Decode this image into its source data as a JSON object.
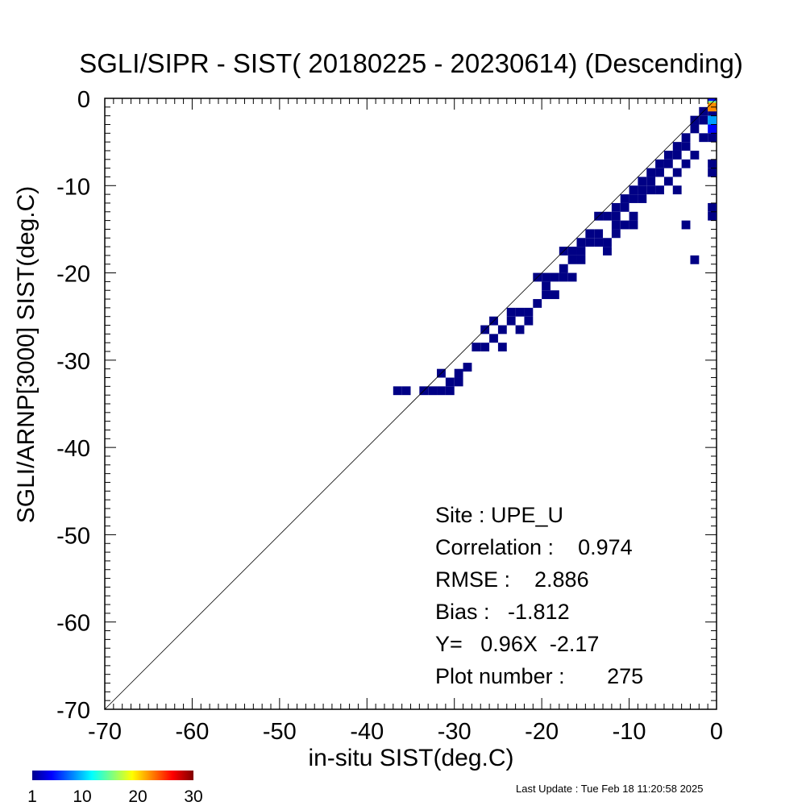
{
  "chart_data": {
    "type": "heatmap",
    "title": "SGLI/SIPR - SIST( 20180225 - 20230614) (Descending)",
    "xlabel": "in-situ SIST(deg.C)",
    "ylabel": "SGLI/ARNP[3000]     SIST(deg.C)",
    "xlim": [
      -70,
      0
    ],
    "ylim": [
      -70,
      0
    ],
    "x_ticks": [
      "-70",
      "-60",
      "-50",
      "-40",
      "-30",
      "-20",
      "-10",
      "0"
    ],
    "y_ticks": [
      "0",
      "-10",
      "-20",
      "-30",
      "-40",
      "-50",
      "-60",
      "-70"
    ],
    "reference_line": "1:1",
    "grid": false,
    "bin_size": 1,
    "stats": [
      "Site : UPE_U",
      "Correlation :    0.974",
      "RMSE :    2.886",
      "Bias :   -1.812",
      "Y=   0.96X  -2.17",
      "Plot number :       275"
    ],
    "colorbar": {
      "min": 1,
      "max": 30,
      "labels": [
        "1",
        "10",
        "20",
        "30"
      ],
      "colormap": "jet"
    },
    "cells": [
      [
        -36.5,
        -33.5,
        1
      ],
      [
        -35.5,
        -33.5,
        1
      ],
      [
        -33.5,
        -33.5,
        1
      ],
      [
        -32.5,
        -33.5,
        1
      ],
      [
        -31.5,
        -33.5,
        1
      ],
      [
        -30.5,
        -33.5,
        1
      ],
      [
        -31.5,
        -31.5,
        1
      ],
      [
        -30.5,
        -32.5,
        1
      ],
      [
        -29.5,
        -32.5,
        1
      ],
      [
        -29.5,
        -31.5,
        1
      ],
      [
        -28.5,
        -30.8,
        1
      ],
      [
        -27.5,
        -28.5,
        1
      ],
      [
        -26.5,
        -28.5,
        1
      ],
      [
        -26.5,
        -26.5,
        1
      ],
      [
        -25.5,
        -25.5,
        1
      ],
      [
        -25.5,
        -27.5,
        1
      ],
      [
        -24.5,
        -26.5,
        1
      ],
      [
        -24.5,
        -28.5,
        1
      ],
      [
        -23.5,
        -25.5,
        1
      ],
      [
        -23.5,
        -24.5,
        1
      ],
      [
        -22.5,
        -24.5,
        1
      ],
      [
        -22.5,
        -26.5,
        1
      ],
      [
        -21.5,
        -24.5,
        1
      ],
      [
        -21.5,
        -25.5,
        1
      ],
      [
        -20.5,
        -23.5,
        1
      ],
      [
        -19.5,
        -22.5,
        1
      ],
      [
        -19.5,
        -21.5,
        1
      ],
      [
        -18.5,
        -20.5,
        1
      ],
      [
        -18.5,
        -22.5,
        1
      ],
      [
        -17.5,
        -20.5,
        1
      ],
      [
        -17.5,
        -19.5,
        1
      ],
      [
        -16.5,
        -20.5,
        1
      ],
      [
        -16.5,
        -18.5,
        1
      ],
      [
        -15.5,
        -17.5,
        1
      ],
      [
        -15.5,
        -16.5,
        1
      ],
      [
        -14.5,
        -16.5,
        1
      ],
      [
        -14.5,
        -15.5,
        1
      ],
      [
        -13.5,
        -15.5,
        1
      ],
      [
        -13.5,
        -16.5,
        1
      ],
      [
        -12.5,
        -16.5,
        1
      ],
      [
        -12.5,
        -17.5,
        1
      ],
      [
        -12.5,
        -13.5,
        1
      ],
      [
        -11.5,
        -14.5,
        1
      ],
      [
        -11.5,
        -13.5,
        1
      ],
      [
        -11.5,
        -12.5,
        1
      ],
      [
        -10.5,
        -12.5,
        1
      ],
      [
        -10.5,
        -11.5,
        1
      ],
      [
        -10.5,
        -14.5,
        1
      ],
      [
        -9.5,
        -11.5,
        1
      ],
      [
        -9.5,
        -10.5,
        1
      ],
      [
        -8.5,
        -10.5,
        1
      ],
      [
        -8.5,
        -9.5,
        1
      ],
      [
        -7.5,
        -9.5,
        1
      ],
      [
        -7.5,
        -8.5,
        1
      ],
      [
        -6.5,
        -8.5,
        1
      ],
      [
        -6.5,
        -7.5,
        1
      ],
      [
        -5.5,
        -7.5,
        1
      ],
      [
        -5.5,
        -6.5,
        1
      ],
      [
        -4.5,
        -6.5,
        1
      ],
      [
        -4.5,
        -5.5,
        1
      ],
      [
        -3.5,
        -5.5,
        1
      ],
      [
        -3.5,
        -4.5,
        1
      ],
      [
        -2.5,
        -3.5,
        1
      ],
      [
        -2.5,
        -2.5,
        1
      ],
      [
        -1.5,
        -2.5,
        1
      ],
      [
        -1.5,
        -1.5,
        1
      ],
      [
        -0.5,
        -1.5,
        1
      ],
      [
        -0.5,
        -0.5,
        2
      ],
      [
        -20.5,
        -20.5,
        1
      ],
      [
        -19.5,
        -20.5,
        1
      ],
      [
        -17.5,
        -17.5,
        1
      ],
      [
        -16.5,
        -17.5,
        1
      ],
      [
        -15.5,
        -18.5,
        1
      ],
      [
        -13.5,
        -13.5,
        1
      ],
      [
        -11.5,
        -15.5,
        1
      ],
      [
        -9.5,
        -13.5,
        1
      ],
      [
        -9.5,
        -14.5,
        1
      ],
      [
        -8.5,
        -11.5,
        1
      ],
      [
        -7.5,
        -10.5,
        1
      ],
      [
        -6.5,
        -10.5,
        1
      ],
      [
        -5.5,
        -9.5,
        1
      ],
      [
        -4.5,
        -8.5,
        1
      ],
      [
        -4.5,
        -10.5,
        1
      ],
      [
        -3.5,
        -7.5,
        1
      ],
      [
        -2.5,
        -6.5,
        1
      ],
      [
        -1.5,
        -4.5,
        1
      ],
      [
        -0.5,
        -2.5,
        7
      ],
      [
        -0.5,
        -3.5,
        2
      ],
      [
        -0.5,
        -4.5,
        1
      ],
      [
        -0.5,
        -7.5,
        1
      ],
      [
        -0.5,
        -8.5,
        1
      ],
      [
        -0.5,
        -12.5,
        1
      ],
      [
        -0.5,
        -13.5,
        1
      ],
      [
        -3.5,
        -14.5,
        1
      ],
      [
        -2.5,
        -18.5,
        1
      ],
      [
        -0.5,
        -0.8,
        14
      ],
      [
        -0.5,
        -1.0,
        22
      ]
    ]
  },
  "footer": {
    "last_update": "Last Update : Tue Feb 18 11:20:58 2025"
  }
}
